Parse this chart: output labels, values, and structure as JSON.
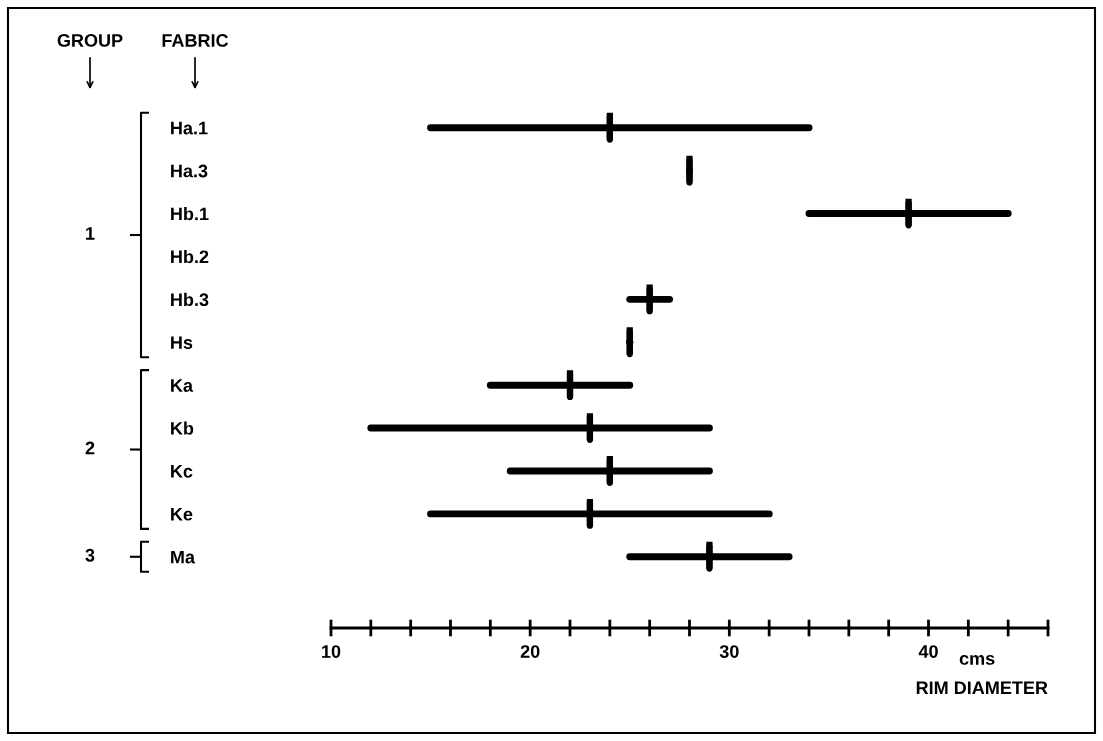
{
  "chart_data": {
    "type": "box",
    "orientation": "horizontal",
    "categories": [
      "Ha.1",
      "Ha.3",
      "Hb.1",
      "Hb.2",
      "Hb.3",
      "Hs",
      "Ka",
      "Kb",
      "Kc",
      "Ke",
      "Ma"
    ],
    "boxes": [
      {
        "low": 15,
        "q1": 24,
        "median": 24,
        "q3": 24,
        "high": 34
      },
      {
        "low": 28,
        "q1": 28,
        "median": 28,
        "q3": 28,
        "high": 28
      },
      {
        "low": 34,
        "q1": 39,
        "median": 39,
        "q3": 39,
        "high": 44
      },
      null,
      {
        "low": 25,
        "q1": 26,
        "median": 26,
        "q3": 26,
        "high": 27
      },
      {
        "low": 25,
        "q1": 25,
        "median": 25,
        "q3": 25,
        "high": 25
      },
      {
        "low": 18,
        "q1": 22,
        "median": 22,
        "q3": 22,
        "high": 25
      },
      {
        "low": 12,
        "q1": 23,
        "median": 23,
        "q3": 23,
        "high": 29
      },
      {
        "low": 19,
        "q1": 24,
        "median": 24,
        "q3": 24,
        "high": 29
      },
      {
        "low": 15,
        "q1": 23,
        "median": 23,
        "q3": 23,
        "high": 32
      },
      {
        "low": 25,
        "q1": 29,
        "median": 29,
        "q3": 29,
        "high": 33
      }
    ],
    "color": "#000000",
    "xlim": [
      10,
      46
    ],
    "xticks": [
      10,
      20,
      30,
      40
    ],
    "xlabel": "RIM DIAMETER",
    "annotations": [
      "GROUP",
      "FABRIC",
      "1",
      "2",
      "3",
      "cms"
    ]
  }
}
